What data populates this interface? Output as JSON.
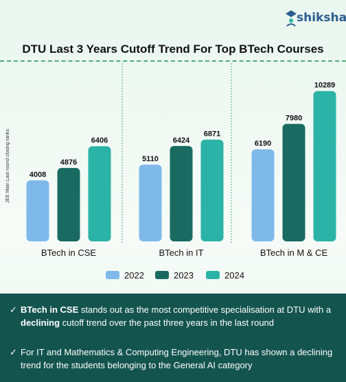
{
  "brand": {
    "name": "shiksha",
    "icon": "graduate-cap-person-icon",
    "color": "#2a5d8f"
  },
  "chart_data": {
    "type": "bar",
    "title": "DTU Last 3 Years Cutoff Trend For Top BTech Courses",
    "ylabel": "JEE Main Last round closing ranks",
    "categories": [
      "BTech in CSE",
      "BTech in IT",
      "BTech in M  & CE"
    ],
    "series": [
      {
        "name": "2022",
        "color": "#7fb9ea",
        "values": [
          4008,
          5110,
          6190
        ]
      },
      {
        "name": "2023",
        "color": "#196b61",
        "values": [
          4876,
          6424,
          7980
        ]
      },
      {
        "name": "2024",
        "color": "#2ab3a6",
        "values": [
          6406,
          6871,
          10289
        ]
      }
    ],
    "ylim": [
      0,
      11000
    ],
    "grid": false,
    "legend_position": "bottom"
  },
  "notes": [
    {
      "parts": [
        {
          "text": "BTech in CSE",
          "bold": true
        },
        {
          "text": " stands out as the most competitive specialisation at DTU with a ",
          "bold": false
        },
        {
          "text": "declining",
          "bold": true
        },
        {
          "text": " cutoff trend over the past three years in the last round",
          "bold": false
        }
      ]
    },
    {
      "parts": [
        {
          "text": "For IT and Mathematics & Computing Engineering, DTU has shown a declining trend for the students belonging to the General AI category",
          "bold": false
        }
      ]
    }
  ],
  "check_mark": "✓"
}
